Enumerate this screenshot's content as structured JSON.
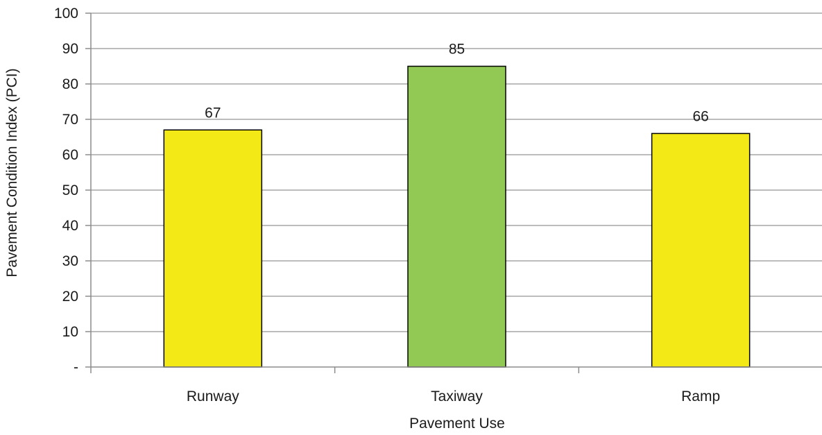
{
  "chart_data": {
    "type": "bar",
    "title": "",
    "xlabel": "Pavement Use",
    "ylabel": "Pavement Condition Index (PCI)",
    "categories": [
      "Runway",
      "Taxiway",
      "Ramp"
    ],
    "values": [
      67,
      85,
      66
    ],
    "bar_colors": [
      "#f3e916",
      "#92c954",
      "#f3e916"
    ],
    "data_labels": [
      "67",
      "85",
      "66"
    ],
    "ylim": [
      0,
      100
    ],
    "yticks": [
      0,
      10,
      20,
      30,
      40,
      50,
      60,
      70,
      80,
      90,
      100
    ],
    "ytick_labels": [
      "-",
      "10",
      "20",
      "30",
      "40",
      "50",
      "60",
      "70",
      "80",
      "90",
      "100"
    ],
    "grid": true,
    "legend": "none"
  }
}
